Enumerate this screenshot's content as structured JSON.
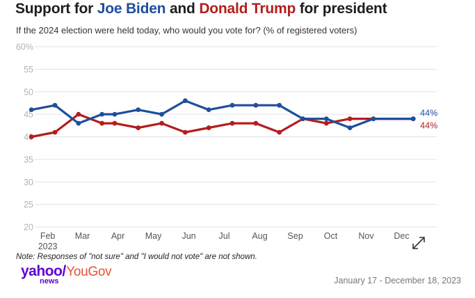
{
  "title": {
    "prefix": "Support for ",
    "biden": "Joe Biden",
    "middle": " and ",
    "trump": "Donald Trump",
    "suffix": " for president"
  },
  "subtitle": "If the 2024 election were held today, who would you vote for? (% of registered voters)",
  "note": "Note: Responses of \"not sure\" and \"I would not vote\" are not shown.",
  "logo": {
    "yahoo": "yahoo",
    "slash": "/",
    "news": "news",
    "yougov": "YouGov"
  },
  "date_range": "January 17 - December 18, 2023",
  "expand_icon": "expand-arrows-icon",
  "colors": {
    "biden": "#1f4e9c",
    "trump": "#b31d1d",
    "grid": "#e3e3e3"
  },
  "chart_data": {
    "type": "line",
    "title": "Support for Joe Biden and Donald Trump for president",
    "subtitle": "If the 2024 election were held today, who would you vote for? (% of registered voters)",
    "ylim": [
      20,
      60
    ],
    "yticks": [
      20,
      25,
      30,
      35,
      40,
      45,
      50,
      55,
      60
    ],
    "ytick_labels": [
      "20",
      "25",
      "30",
      "35",
      "40",
      "45",
      "50",
      "55",
      "60%"
    ],
    "xlim": [
      0.45,
      11.75
    ],
    "xticks": [
      {
        "label": "Feb",
        "value": 1.0,
        "year": "2023"
      },
      {
        "label": "Mar",
        "value": 1.96
      },
      {
        "label": "Apr",
        "value": 2.94
      },
      {
        "label": "May",
        "value": 3.92
      },
      {
        "label": "Jun",
        "value": 4.9
      },
      {
        "label": "Jul",
        "value": 5.88
      },
      {
        "label": "Aug",
        "value": 6.86
      },
      {
        "label": "Sep",
        "value": 7.84
      },
      {
        "label": "Oct",
        "value": 8.82
      },
      {
        "label": "Nov",
        "value": 9.8
      },
      {
        "label": "Dec",
        "value": 10.78
      }
    ],
    "x": [
      0.55,
      1.2,
      1.85,
      2.5,
      2.85,
      3.5,
      4.15,
      4.8,
      5.45,
      6.1,
      6.75,
      7.4,
      8.05,
      8.7,
      9.35,
      10.0,
      11.1
    ],
    "series": [
      {
        "name": "Joe Biden",
        "color": "#1f4e9c",
        "values": [
          46,
          47,
          43,
          45,
          45,
          46,
          45,
          48,
          46,
          47,
          47,
          47,
          44,
          44,
          42,
          44,
          44
        ],
        "end_label": "44%"
      },
      {
        "name": "Donald Trump",
        "color": "#b31d1d",
        "values": [
          40,
          41,
          45,
          43,
          43,
          42,
          43,
          41,
          42,
          43,
          43,
          41,
          44,
          43,
          44,
          44,
          44
        ],
        "end_label": "44%"
      }
    ],
    "grid": true
  }
}
